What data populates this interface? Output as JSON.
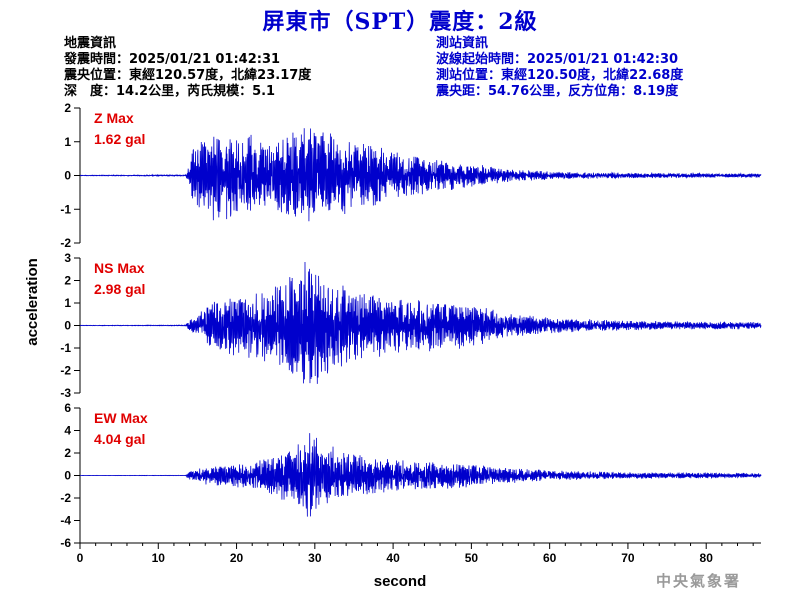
{
  "title": "屏東市（SPT）震度：2級",
  "quake_info": {
    "heading": "地震資訊",
    "time": "發震時間：2025/01/21 01:42:31",
    "location": "震央位置：東經120.57度，北緯23.17度",
    "depth": "深　度：14.2公里，芮氏規模：5.1"
  },
  "station_info": {
    "heading": "測站資訊",
    "wave_start": "波線起始時間：2025/01/21 01:42:30",
    "location": "測站位置：東經120.50度，北緯22.68度",
    "distance": "震央距：54.76公里，反方位角：8.19度"
  },
  "credit": "中央氣象署",
  "colors": {
    "title": "#0000cc",
    "trace": "#0000cc",
    "max_label": "#e00000",
    "station_text": "#0000cc"
  },
  "chart_data": {
    "type": "line",
    "xlabel": "second",
    "ylabel": "acceleration",
    "xlim": [
      0,
      87
    ],
    "xticks": [
      0,
      10,
      20,
      30,
      40,
      50,
      60,
      70,
      80
    ],
    "panels": [
      {
        "name": "Z",
        "max_title": "Z Max",
        "max_value": "1.62 gal",
        "ylim": [
          -2,
          2
        ],
        "yticks": [
          -2,
          -1,
          0,
          1,
          2
        ],
        "series_desc": "low-frequency noise",
        "envelope": [
          [
            0,
            0.01
          ],
          [
            13.5,
            0.02
          ],
          [
            14,
            0.4
          ],
          [
            14.5,
            1.1
          ],
          [
            16,
            1.3
          ],
          [
            19,
            1.4
          ],
          [
            22,
            1.2
          ],
          [
            24,
            1.0
          ],
          [
            27,
            1.35
          ],
          [
            29,
            1.5
          ],
          [
            30,
            1.62
          ],
          [
            32,
            1.3
          ],
          [
            35,
            1.1
          ],
          [
            40,
            0.75
          ],
          [
            45,
            0.5
          ],
          [
            50,
            0.35
          ],
          [
            55,
            0.2
          ],
          [
            60,
            0.12
          ],
          [
            70,
            0.08
          ],
          [
            87,
            0.06
          ]
        ]
      },
      {
        "name": "NS",
        "max_title": "NS Max",
        "max_value": "2.98 gal",
        "ylim": [
          -3,
          3
        ],
        "yticks": [
          -3,
          -2,
          -1,
          0,
          1,
          2,
          3
        ],
        "envelope": [
          [
            0,
            0.01
          ],
          [
            13.5,
            0.02
          ],
          [
            14,
            0.3
          ],
          [
            15,
            0.4
          ],
          [
            16,
            0.9
          ],
          [
            19,
            1.4
          ],
          [
            22,
            1.6
          ],
          [
            25,
            1.9
          ],
          [
            27,
            2.5
          ],
          [
            29,
            2.98
          ],
          [
            31,
            2.6
          ],
          [
            33,
            2.0
          ],
          [
            36,
            1.6
          ],
          [
            40,
            1.3
          ],
          [
            45,
            1.2
          ],
          [
            50,
            1.0
          ],
          [
            55,
            0.55
          ],
          [
            60,
            0.35
          ],
          [
            70,
            0.22
          ],
          [
            87,
            0.16
          ]
        ]
      },
      {
        "name": "EW",
        "max_title": "EW Max",
        "max_value": "4.04 gal",
        "ylim": [
          -6,
          6
        ],
        "yticks": [
          -6,
          -4,
          -2,
          0,
          2,
          4,
          6
        ],
        "envelope": [
          [
            0,
            0.01
          ],
          [
            13.5,
            0.02
          ],
          [
            14,
            0.4
          ],
          [
            16,
            0.8
          ],
          [
            19,
            1.0
          ],
          [
            23,
            1.4
          ],
          [
            26,
            2.4
          ],
          [
            28,
            3.0
          ],
          [
            29,
            4.04
          ],
          [
            31,
            3.0
          ],
          [
            33,
            2.4
          ],
          [
            36,
            1.8
          ],
          [
            40,
            1.5
          ],
          [
            45,
            1.3
          ],
          [
            50,
            1.1
          ],
          [
            55,
            0.7
          ],
          [
            60,
            0.45
          ],
          [
            70,
            0.3
          ],
          [
            87,
            0.25
          ]
        ]
      }
    ]
  }
}
